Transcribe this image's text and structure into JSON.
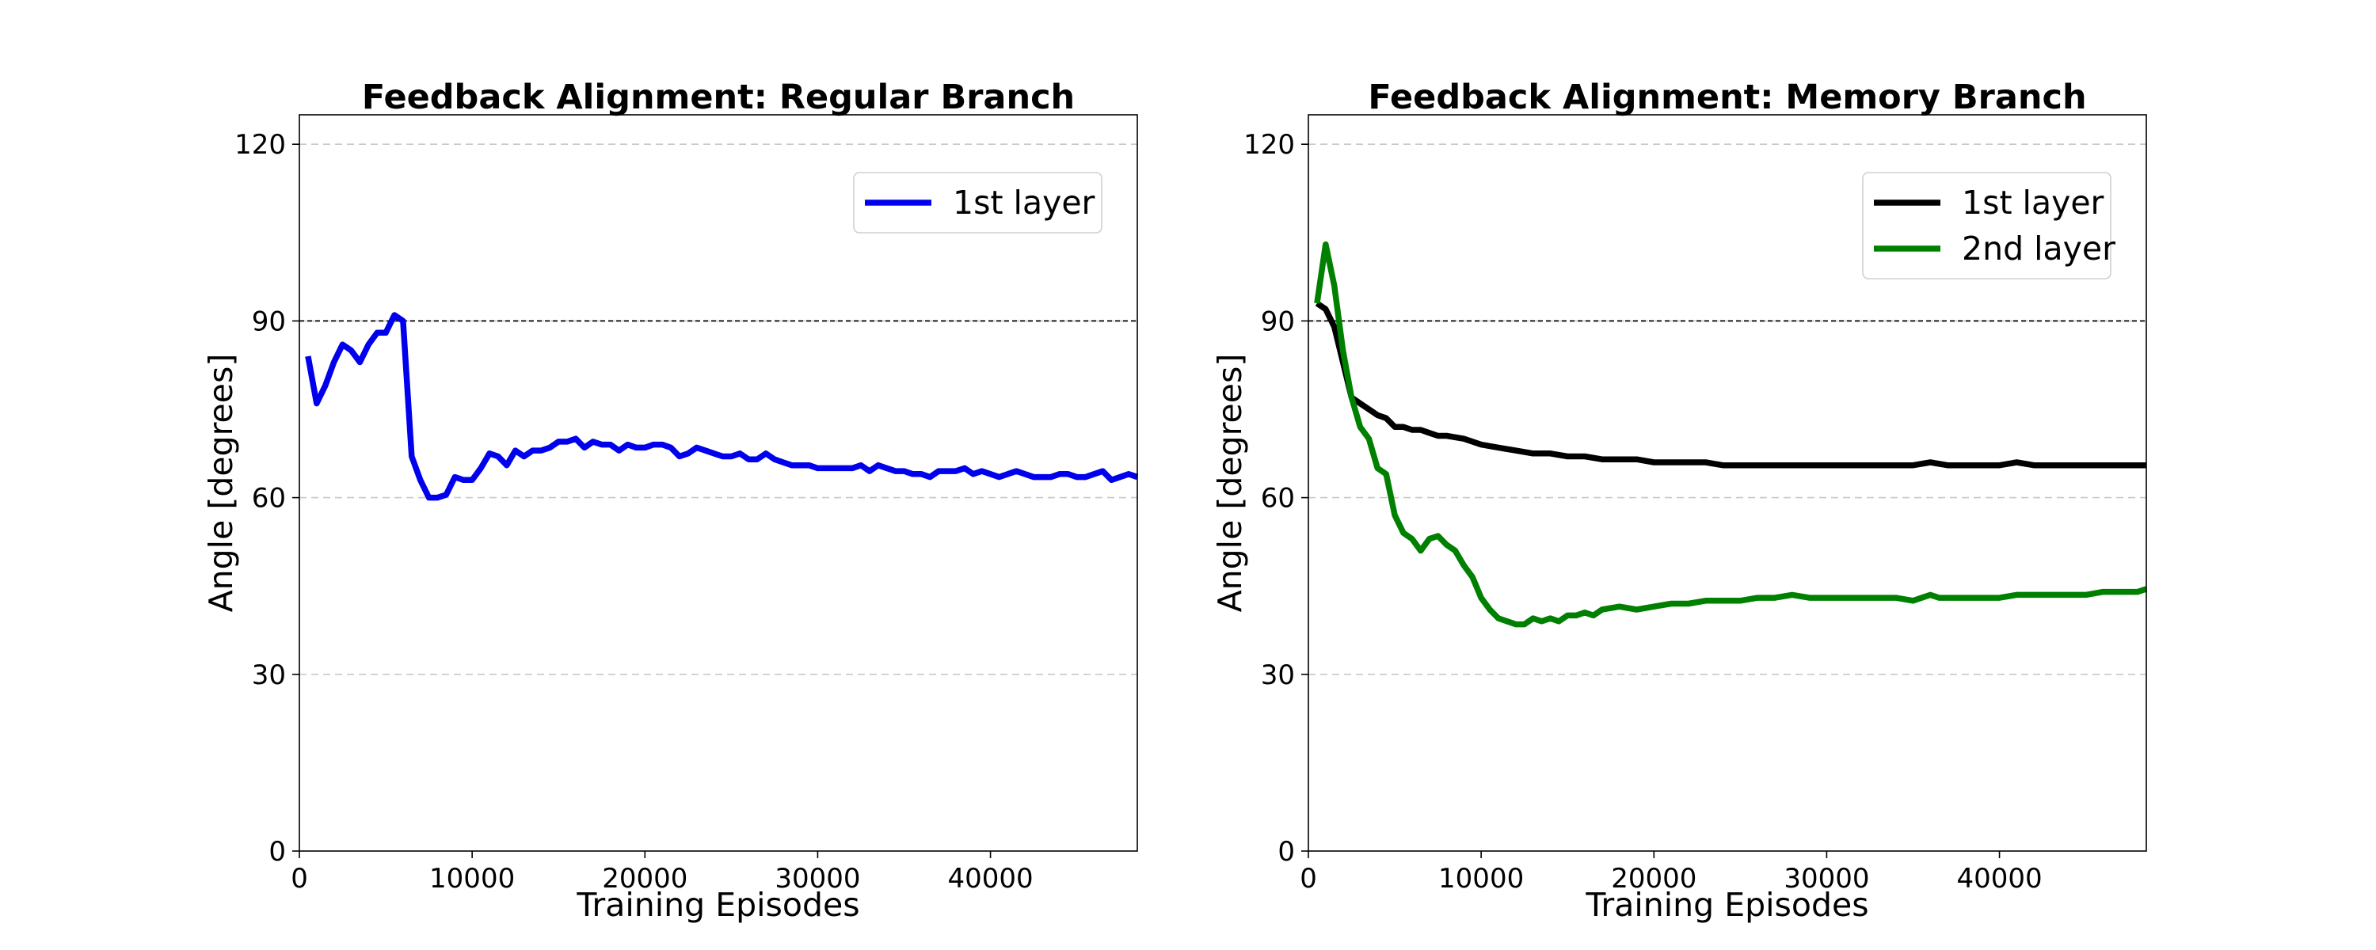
{
  "chart_data": [
    {
      "type": "line",
      "title": "Feedback Alignment: Regular Branch",
      "xlabel": "Training Episodes",
      "ylabel": "Angle [degrees]",
      "xlim": [
        0,
        48500
      ],
      "ylim": [
        0,
        125
      ],
      "xticks": [
        0,
        10000,
        20000,
        30000,
        40000
      ],
      "yticks": [
        0,
        30,
        60,
        90,
        120
      ],
      "grid": "horizontal-dashed",
      "reference_line": 90,
      "legend_position": "upper-right",
      "series": [
        {
          "name": "1st layer",
          "color": "#0000ee",
          "x": [
            500,
            1000,
            1500,
            2000,
            2500,
            3000,
            3500,
            4000,
            4500,
            5000,
            5500,
            6000,
            6500,
            7000,
            7500,
            8000,
            8500,
            9000,
            9500,
            10000,
            10500,
            11000,
            11500,
            12000,
            12500,
            13000,
            13500,
            14000,
            14500,
            15000,
            15500,
            16000,
            16500,
            17000,
            17500,
            18000,
            18500,
            19000,
            19500,
            20000,
            20500,
            21000,
            21500,
            22000,
            22500,
            23000,
            23500,
            24000,
            24500,
            25000,
            25500,
            26000,
            26500,
            27000,
            27500,
            28000,
            28500,
            29000,
            29500,
            30000,
            30500,
            31000,
            31500,
            32000,
            32500,
            33000,
            33500,
            34000,
            34500,
            35000,
            35500,
            36000,
            36500,
            37000,
            37500,
            38000,
            38500,
            39000,
            39500,
            40000,
            40500,
            41000,
            41500,
            42000,
            42500,
            43000,
            43500,
            44000,
            44500,
            45000,
            45500,
            46000,
            46500,
            47000,
            47500,
            48000,
            48500
          ],
          "values": [
            84,
            76,
            79,
            83,
            86,
            85,
            83,
            86,
            88,
            88,
            91,
            90,
            67,
            63,
            60,
            60,
            60.5,
            63.5,
            63,
            63,
            65,
            67.5,
            67,
            65.5,
            68,
            67,
            68,
            68,
            68.5,
            69.5,
            69.5,
            70,
            68.5,
            69.5,
            69,
            69,
            68,
            69,
            68.5,
            68.5,
            69,
            69,
            68.5,
            67,
            67.5,
            68.5,
            68,
            67.5,
            67,
            67,
            67.5,
            66.5,
            66.5,
            67.5,
            66.5,
            66,
            65.5,
            65.5,
            65.5,
            65,
            65,
            65,
            65,
            65,
            65.5,
            64.5,
            65.5,
            65,
            64.5,
            64.5,
            64,
            64,
            63.5,
            64.5,
            64.5,
            64.5,
            65,
            64,
            64.5,
            64,
            63.5,
            64,
            64.5,
            64,
            63.5,
            63.5,
            63.5,
            64,
            64,
            63.5,
            63.5,
            64,
            64.5,
            63,
            63.5,
            64,
            63.5
          ]
        }
      ]
    },
    {
      "type": "line",
      "title": "Feedback Alignment: Memory Branch",
      "xlabel": "Training Episodes",
      "ylabel": "Angle [degrees]",
      "xlim": [
        0,
        48500
      ],
      "ylim": [
        0,
        125
      ],
      "xticks": [
        0,
        10000,
        20000,
        30000,
        40000
      ],
      "yticks": [
        0,
        30,
        60,
        90,
        120
      ],
      "grid": "horizontal-dashed",
      "reference_line": 90,
      "legend_position": "upper-right",
      "series": [
        {
          "name": "1st layer",
          "color": "#000000",
          "x": [
            500,
            1000,
            1500,
            2000,
            2500,
            3000,
            3500,
            4000,
            4500,
            5000,
            5500,
            6000,
            6500,
            7000,
            7500,
            8000,
            9000,
            10000,
            11000,
            12000,
            13000,
            14000,
            15000,
            16000,
            17000,
            18000,
            19000,
            20000,
            21000,
            22000,
            23000,
            24000,
            25000,
            26000,
            27000,
            28000,
            29000,
            30000,
            31000,
            32000,
            33000,
            34000,
            35000,
            36000,
            37000,
            38000,
            39000,
            40000,
            41000,
            42000,
            43000,
            44000,
            45000,
            46000,
            47000,
            48000,
            48500
          ],
          "values": [
            93,
            92,
            89,
            83,
            77,
            76,
            75,
            74,
            73.5,
            72,
            72,
            71.5,
            71.5,
            71,
            70.5,
            70.5,
            70,
            69,
            68.5,
            68,
            67.5,
            67.5,
            67,
            67,
            66.5,
            66.5,
            66.5,
            66,
            66,
            66,
            66,
            65.5,
            65.5,
            65.5,
            65.5,
            65.5,
            65.5,
            65.5,
            65.5,
            65.5,
            65.5,
            65.5,
            65.5,
            66,
            65.5,
            65.5,
            65.5,
            65.5,
            66,
            65.5,
            65.5,
            65.5,
            65.5,
            65.5,
            65.5,
            65.5,
            65.5
          ]
        },
        {
          "name": "2nd layer",
          "color": "#008000",
          "x": [
            500,
            1000,
            1500,
            2000,
            2500,
            3000,
            3500,
            4000,
            4500,
            5000,
            5500,
            6000,
            6500,
            7000,
            7500,
            8000,
            8500,
            9000,
            9500,
            10000,
            10500,
            11000,
            11500,
            12000,
            12500,
            13000,
            13500,
            14000,
            14500,
            15000,
            15500,
            16000,
            16500,
            17000,
            18000,
            19000,
            20000,
            21000,
            22000,
            23000,
            24000,
            25000,
            26000,
            27000,
            28000,
            29000,
            30000,
            31000,
            32000,
            33000,
            34000,
            35000,
            35500,
            36000,
            36500,
            37000,
            38000,
            39000,
            40000,
            41000,
            42000,
            43000,
            44000,
            45000,
            46000,
            47000,
            48000,
            48500
          ],
          "values": [
            93,
            103,
            96,
            85,
            77,
            72,
            70,
            65,
            64,
            57,
            54,
            53,
            51,
            53,
            53.5,
            52,
            51,
            48.5,
            46.5,
            43,
            41,
            39.5,
            39,
            38.5,
            38.5,
            39.5,
            39,
            39.5,
            39,
            40,
            40,
            40.5,
            40,
            41,
            41.5,
            41,
            41.5,
            42,
            42,
            42.5,
            42.5,
            42.5,
            43,
            43,
            43.5,
            43,
            43,
            43,
            43,
            43,
            43,
            42.5,
            43,
            43.5,
            43,
            43,
            43,
            43,
            43,
            43.5,
            43.5,
            43.5,
            43.5,
            43.5,
            44,
            44,
            44,
            44.5
          ]
        }
      ]
    }
  ]
}
